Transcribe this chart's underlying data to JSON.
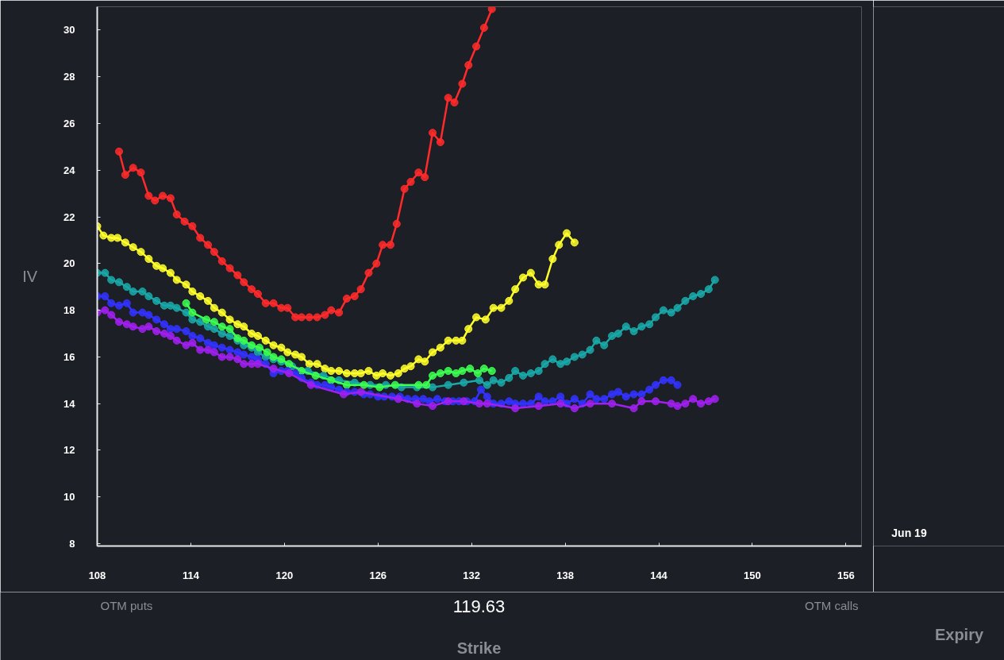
{
  "chart_data": {
    "type": "line",
    "xlabel": "Strike",
    "ylabel": "IV",
    "xlim": [
      108,
      157
    ],
    "ylim": [
      7.9,
      31
    ],
    "xticks": [
      108,
      114,
      120,
      126,
      132,
      138,
      144,
      150,
      156
    ],
    "yticks": [
      8,
      10,
      12,
      14,
      16,
      18,
      20,
      22,
      24,
      26,
      28,
      30
    ],
    "grid": false,
    "marker": "circle",
    "line_style": "solid",
    "annotations": [
      "OTM puts",
      "119.63",
      "OTM calls",
      "Jun 19",
      "Expiry"
    ],
    "series": [
      {
        "color": "#ff2a2a",
        "x": [
          109.4,
          109.8,
          110.3,
          110.8,
          111.3,
          111.7,
          112.2,
          112.7,
          113.1,
          113.6,
          114.1,
          114.6,
          115.1,
          115.5,
          116.0,
          116.5,
          117.0,
          117.4,
          117.9,
          118.3,
          118.8,
          119.3,
          119.8,
          120.2,
          120.7,
          121.1,
          121.6,
          122.1,
          122.6,
          123.0,
          123.5,
          124.0,
          124.5,
          124.9,
          125.4,
          125.9,
          126.3,
          126.8,
          127.2,
          127.7,
          128.1,
          128.6,
          129.0,
          129.5,
          130.0,
          130.5,
          130.9,
          131.4,
          131.8,
          132.3,
          132.8,
          133.3
        ],
        "values": [
          24.8,
          23.8,
          24.1,
          23.9,
          22.9,
          22.7,
          22.9,
          22.8,
          22.1,
          21.8,
          21.6,
          21.1,
          20.8,
          20.5,
          20.1,
          19.8,
          19.5,
          19.2,
          18.9,
          18.7,
          18.3,
          18.3,
          18.1,
          18.1,
          17.7,
          17.7,
          17.7,
          17.7,
          17.8,
          18.0,
          17.9,
          18.5,
          18.6,
          18.9,
          19.6,
          20.0,
          20.8,
          20.8,
          21.7,
          23.2,
          23.5,
          23.9,
          23.7,
          25.6,
          25.2,
          27.1,
          26.9,
          27.7,
          28.5,
          29.3,
          30.1,
          30.9
        ]
      },
      {
        "color": "#ffff2a",
        "x": [
          108.0,
          108.4,
          108.9,
          109.3,
          109.8,
          110.3,
          110.8,
          111.3,
          111.8,
          112.2,
          112.7,
          113.1,
          113.7,
          114.1,
          114.6,
          115.1,
          115.5,
          116.0,
          116.5,
          117.0,
          117.4,
          117.9,
          118.3,
          118.8,
          119.3,
          119.8,
          120.2,
          120.7,
          121.1,
          121.6,
          122.1,
          122.6,
          123.0,
          123.5,
          124.0,
          124.5,
          124.9,
          125.4,
          125.9,
          126.3,
          126.8,
          127.3,
          127.7,
          128.1,
          128.6,
          129.0,
          129.5,
          130.0,
          130.5,
          131.0,
          131.4,
          131.8,
          132.3,
          132.9,
          133.4,
          133.9,
          134.4,
          134.8,
          135.3,
          135.8,
          136.3,
          136.7,
          137.2,
          137.6,
          138.1,
          138.6
        ],
        "values": [
          21.6,
          21.2,
          21.1,
          21.1,
          20.9,
          20.7,
          20.5,
          20.2,
          19.9,
          19.8,
          19.6,
          19.3,
          19.1,
          18.8,
          18.6,
          18.4,
          18.1,
          17.9,
          17.6,
          17.4,
          17.3,
          17.0,
          16.9,
          16.7,
          16.5,
          16.4,
          16.2,
          16.1,
          16.0,
          15.7,
          15.7,
          15.5,
          15.4,
          15.4,
          15.3,
          15.3,
          15.3,
          15.4,
          15.2,
          15.3,
          15.2,
          15.3,
          15.5,
          15.6,
          15.9,
          15.8,
          16.2,
          16.4,
          16.7,
          16.7,
          16.7,
          17.2,
          17.7,
          17.6,
          18.1,
          18.1,
          18.4,
          18.9,
          19.4,
          19.6,
          19.1,
          19.1,
          20.2,
          20.8,
          21.3,
          20.9
        ]
      },
      {
        "color": "#1aa8a8",
        "x": [
          108.0,
          108.5,
          108.9,
          109.4,
          109.9,
          110.3,
          110.9,
          111.3,
          111.8,
          112.3,
          112.7,
          113.1,
          113.7,
          114.1,
          114.6,
          115.1,
          115.5,
          116.0,
          116.5,
          117.0,
          117.4,
          117.9,
          118.3,
          118.8,
          119.3,
          119.8,
          120.5,
          121.5,
          122.5,
          123.5,
          124.5,
          125.5,
          126.5,
          127.5,
          128.5,
          129.5,
          130.5,
          131.5,
          132.5,
          133.0,
          133.4,
          133.9,
          134.4,
          134.8,
          135.3,
          135.8,
          136.3,
          136.7,
          137.2,
          137.7,
          138.1,
          138.6,
          139.1,
          139.6,
          140.0,
          140.5,
          141.0,
          141.4,
          141.9,
          142.4,
          142.9,
          143.4,
          143.8,
          144.3,
          144.8,
          145.2,
          145.7,
          146.2,
          146.7,
          147.2,
          147.6
        ],
        "values": [
          19.6,
          19.6,
          19.3,
          19.2,
          19.0,
          18.8,
          18.8,
          18.6,
          18.4,
          18.2,
          18.2,
          18.1,
          17.9,
          17.6,
          17.5,
          17.3,
          17.2,
          17.0,
          16.9,
          16.7,
          16.5,
          16.4,
          16.2,
          16.0,
          15.9,
          15.8,
          15.6,
          15.4,
          15.2,
          15.0,
          14.9,
          14.8,
          14.8,
          14.7,
          14.7,
          14.7,
          14.8,
          14.9,
          15.0,
          14.8,
          15.0,
          14.9,
          15.1,
          15.4,
          15.2,
          15.3,
          15.4,
          15.7,
          15.9,
          15.7,
          15.8,
          16.0,
          16.1,
          16.3,
          16.7,
          16.5,
          16.9,
          17.0,
          17.3,
          17.1,
          17.3,
          17.4,
          17.7,
          18.0,
          17.9,
          18.1,
          18.4,
          18.6,
          18.7,
          18.9,
          19.3
        ]
      },
      {
        "color": "#3cff50",
        "x": [
          113.7,
          114.1,
          115.0,
          115.5,
          116.0,
          116.5,
          117.0,
          117.4,
          117.9,
          118.4,
          118.9,
          119.3,
          119.8,
          120.3,
          121.1,
          122.0,
          123.0,
          124.0,
          125.1,
          126.1,
          127.1,
          128.6,
          129.1,
          129.5,
          130.0,
          130.5,
          131.0,
          131.4,
          131.9,
          132.4,
          132.8,
          133.3
        ],
        "values": [
          18.3,
          17.9,
          17.6,
          17.5,
          17.3,
          17.2,
          16.8,
          16.7,
          16.5,
          16.4,
          16.2,
          16.0,
          15.9,
          15.7,
          15.4,
          15.2,
          15.0,
          14.8,
          14.8,
          14.7,
          14.8,
          14.8,
          14.8,
          15.2,
          15.3,
          15.4,
          15.3,
          15.4,
          15.5,
          15.3,
          15.5,
          15.4
        ]
      },
      {
        "color": "#3333ff",
        "x": [
          108.0,
          108.5,
          108.9,
          109.4,
          109.9,
          110.3,
          110.9,
          111.3,
          111.8,
          112.3,
          112.7,
          113.1,
          113.7,
          114.1,
          114.6,
          115.1,
          115.5,
          116.0,
          116.5,
          117.0,
          117.4,
          117.9,
          118.3,
          118.8,
          119.3,
          119.8,
          120.2,
          120.7,
          121.1,
          121.7,
          122.1,
          122.6,
          123.0,
          123.5,
          124.0,
          124.5,
          125.1,
          125.5,
          126.0,
          126.4,
          126.9,
          127.4,
          127.9,
          128.4,
          128.9,
          129.3,
          129.8,
          130.3,
          130.8,
          131.2,
          131.7,
          132.2,
          132.6,
          133.0,
          133.4,
          133.9,
          134.4,
          134.8,
          135.3,
          135.8,
          136.3,
          136.7,
          137.2,
          137.7,
          138.1,
          138.6,
          139.1,
          139.6,
          140.0,
          140.5,
          141.0,
          141.4,
          141.9,
          142.4,
          142.9,
          143.4,
          143.8,
          144.3,
          144.8,
          145.2
        ],
        "values": [
          18.6,
          18.6,
          18.3,
          18.2,
          18.3,
          17.9,
          17.9,
          17.8,
          17.6,
          17.4,
          17.2,
          17.2,
          17.1,
          16.9,
          16.8,
          16.6,
          16.5,
          16.4,
          16.3,
          16.2,
          16.1,
          16.0,
          15.9,
          15.7,
          15.3,
          15.4,
          15.4,
          15.3,
          15.1,
          14.9,
          14.8,
          14.8,
          14.7,
          14.6,
          14.5,
          14.5,
          14.4,
          14.4,
          14.3,
          14.3,
          14.3,
          14.3,
          14.2,
          14.2,
          14.2,
          14.1,
          14.2,
          14.1,
          14.1,
          14.1,
          14.1,
          14.1,
          14.6,
          14.3,
          14.0,
          14.0,
          14.1,
          14.0,
          14.0,
          14.0,
          14.3,
          14.1,
          14.1,
          14.3,
          14.0,
          14.2,
          14.0,
          14.4,
          14.2,
          14.2,
          14.4,
          14.5,
          14.3,
          14.4,
          14.4,
          14.6,
          14.8,
          15.0,
          15.0,
          14.8
        ]
      },
      {
        "color": "#a020f0",
        "x": [
          108.0,
          108.5,
          108.9,
          109.4,
          109.9,
          110.3,
          110.9,
          111.3,
          111.8,
          112.3,
          112.7,
          113.1,
          113.7,
          114.1,
          114.6,
          115.1,
          115.5,
          116.0,
          116.5,
          117.0,
          117.4,
          117.9,
          118.3,
          119.3,
          120.3,
          121.7,
          123.8,
          124.9,
          127.3,
          128.5,
          129.5,
          130.5,
          131.5,
          132.5,
          133.0,
          134.8,
          136.3,
          137.7,
          138.6,
          139.6,
          141.0,
          142.4,
          142.9,
          143.8,
          144.8,
          145.2,
          145.7,
          146.2,
          146.7,
          147.2,
          147.6
        ],
        "values": [
          17.9,
          18.0,
          17.8,
          17.5,
          17.4,
          17.3,
          17.2,
          17.3,
          17.1,
          17.0,
          16.9,
          16.7,
          16.5,
          16.6,
          16.3,
          16.3,
          16.2,
          16.0,
          16.0,
          15.9,
          15.7,
          15.7,
          15.7,
          15.5,
          15.3,
          14.8,
          14.4,
          14.5,
          14.2,
          14.0,
          13.9,
          14.1,
          14.1,
          14.0,
          14.0,
          13.8,
          13.9,
          14.0,
          13.8,
          14.0,
          14.0,
          13.8,
          14.1,
          14.1,
          14.0,
          13.9,
          14.0,
          14.2,
          14.0,
          14.1,
          14.2
        ]
      }
    ]
  }
}
